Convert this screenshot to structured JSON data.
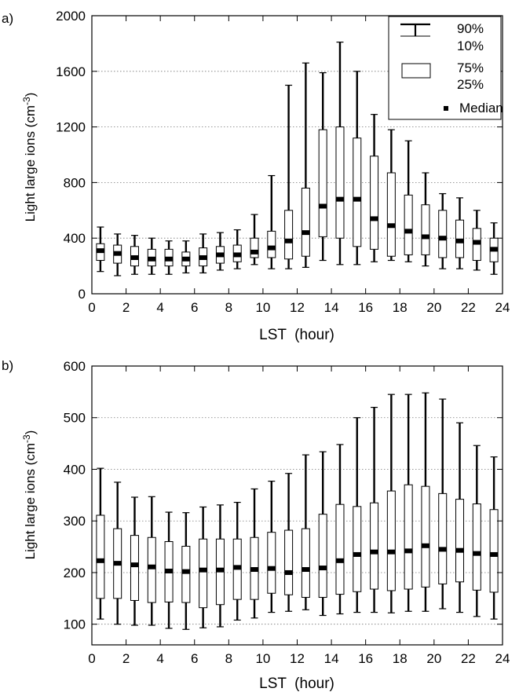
{
  "legend": {
    "whisker_top": "90%",
    "whisker_bottom": "10%",
    "box_top": "75%",
    "box_bottom": "25%",
    "median": "Median"
  },
  "chart_data": [
    {
      "type": "boxplot",
      "panel_label": "a)",
      "xlabel": "LST  (hour)",
      "ylabel": "Light large ions (cm",
      "ylabel_sup": "-3",
      "ylabel_close": ")",
      "xlim": [
        0,
        24
      ],
      "ylim": [
        0,
        2000
      ],
      "xticks": [
        0,
        2,
        4,
        6,
        8,
        10,
        12,
        14,
        16,
        18,
        20,
        22,
        24
      ],
      "yticks": [
        0,
        400,
        800,
        1200,
        1600,
        2000
      ],
      "grid": "horizontal dotted",
      "legend_position": "top-right",
      "x": [
        0.5,
        1.5,
        2.5,
        3.5,
        4.5,
        5.5,
        6.5,
        7.5,
        8.5,
        9.5,
        10.5,
        11.5,
        12.5,
        13.5,
        14.5,
        15.5,
        16.5,
        17.5,
        18.5,
        19.5,
        20.5,
        21.5,
        22.5,
        23.5
      ],
      "p10": [
        160,
        130,
        140,
        140,
        140,
        150,
        150,
        170,
        180,
        210,
        180,
        180,
        190,
        240,
        210,
        210,
        230,
        240,
        230,
        200,
        180,
        180,
        170,
        140
      ],
      "p25": [
        240,
        220,
        200,
        200,
        200,
        200,
        200,
        220,
        230,
        260,
        260,
        250,
        270,
        410,
        400,
        340,
        320,
        270,
        280,
        280,
        260,
        260,
        240,
        230
      ],
      "median": [
        310,
        290,
        260,
        250,
        250,
        250,
        260,
        280,
        280,
        300,
        330,
        380,
        440,
        630,
        680,
        680,
        540,
        490,
        450,
        410,
        400,
        380,
        370,
        320
      ],
      "p75": [
        360,
        350,
        340,
        320,
        320,
        300,
        330,
        340,
        350,
        400,
        450,
        600,
        760,
        1180,
        1200,
        1120,
        990,
        870,
        710,
        640,
        600,
        530,
        470,
        400
      ],
      "p90": [
        480,
        430,
        420,
        400,
        380,
        380,
        430,
        440,
        460,
        570,
        850,
        1500,
        1660,
        1590,
        1810,
        1600,
        1290,
        1180,
        1100,
        870,
        720,
        690,
        600,
        510
      ]
    },
    {
      "type": "boxplot",
      "panel_label": "b)",
      "xlabel": "LST  (hour)",
      "ylabel": "Light large ions (cm",
      "ylabel_sup": "-3",
      "ylabel_close": ")",
      "xlim": [
        0,
        24
      ],
      "ylim": [
        60,
        600
      ],
      "xticks": [
        0,
        2,
        4,
        6,
        8,
        10,
        12,
        14,
        16,
        18,
        20,
        22,
        24
      ],
      "yticks": [
        100,
        200,
        300,
        400,
        500,
        600
      ],
      "grid": "horizontal dotted",
      "x": [
        0.5,
        1.5,
        2.5,
        3.5,
        4.5,
        5.5,
        6.5,
        7.5,
        8.5,
        9.5,
        10.5,
        11.5,
        12.5,
        13.5,
        14.5,
        15.5,
        16.5,
        17.5,
        18.5,
        19.5,
        20.5,
        21.5,
        22.5,
        23.5
      ],
      "p10": [
        110,
        100,
        98,
        98,
        92,
        90,
        93,
        95,
        108,
        112,
        123,
        125,
        128,
        117,
        120,
        123,
        123,
        122,
        125,
        125,
        130,
        123,
        115,
        110
      ],
      "p25": [
        150,
        150,
        146,
        142,
        143,
        142,
        132,
        138,
        148,
        148,
        160,
        157,
        152,
        152,
        158,
        163,
        168,
        165,
        168,
        172,
        178,
        182,
        166,
        162
      ],
      "median": [
        223,
        218,
        215,
        211,
        203,
        202,
        205,
        205,
        210,
        206,
        208,
        200,
        206,
        209,
        223,
        235,
        240,
        240,
        242,
        252,
        245,
        243,
        237,
        235
      ],
      "p75": [
        311,
        285,
        272,
        268,
        260,
        251,
        265,
        265,
        265,
        268,
        278,
        282,
        285,
        313,
        332,
        328,
        335,
        358,
        370,
        367,
        353,
        342,
        333,
        322
      ],
      "p90": [
        402,
        375,
        346,
        347,
        317,
        316,
        327,
        331,
        336,
        362,
        377,
        392,
        428,
        434,
        448,
        500,
        520,
        545,
        545,
        548,
        536,
        490,
        446,
        424
      ]
    }
  ]
}
